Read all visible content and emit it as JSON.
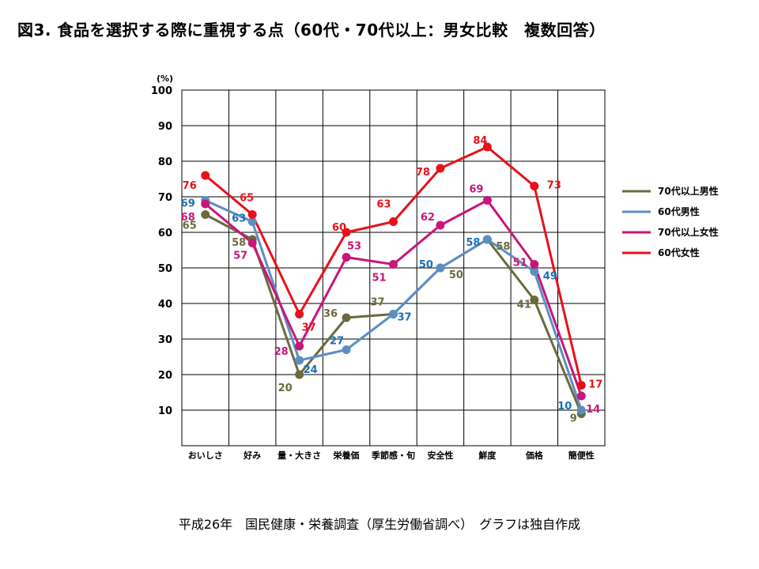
{
  "title": "図3. 食品を選択する際に重視する点（60代・70代以上：男女比較　複数回答）",
  "source": "平成26年　国民健康・栄養調査（厚生労働省調べ）　グラフは独自作成",
  "chart_data": {
    "type": "line",
    "unit": "(%)",
    "categories": [
      "おいしさ",
      "好み",
      "量・大きさ",
      "栄養価",
      "季節感・旬",
      "安全性",
      "鮮度",
      "価格",
      "簡便性"
    ],
    "ylim": [
      0,
      100
    ],
    "yticks": [
      10,
      20,
      30,
      40,
      50,
      60,
      70,
      80,
      90,
      100
    ],
    "grid": true,
    "legend_position": "right",
    "series": [
      {
        "name": "70代以上男性",
        "color": "#6b6a3f",
        "label_color": "#6b6a3f",
        "values": [
          65,
          58,
          20,
          36,
          37,
          50,
          58,
          41,
          9
        ]
      },
      {
        "name": "60代男性",
        "color": "#5b8fc2",
        "label_color": "#1a6fb5",
        "values": [
          69,
          63,
          24,
          27,
          37,
          50,
          58,
          49,
          10
        ]
      },
      {
        "name": "70代以上女性",
        "color": "#c8167a",
        "label_color": "#c8167a",
        "values": [
          68,
          57,
          28,
          53,
          51,
          62,
          69,
          51,
          14
        ]
      },
      {
        "name": "60代女性",
        "color": "#e8111b",
        "label_color": "#e8111b",
        "values": [
          76,
          65,
          37,
          60,
          63,
          78,
          84,
          73,
          17
        ]
      }
    ]
  }
}
